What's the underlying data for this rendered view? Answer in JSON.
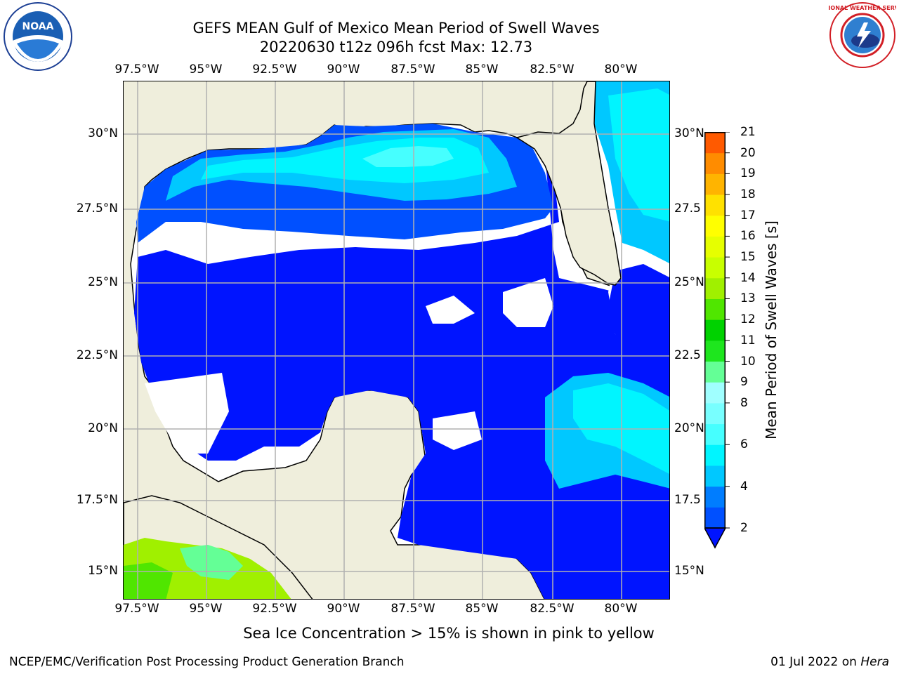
{
  "header": {
    "title_line1": "GEFS MEAN Gulf of Mexico Mean Period of Swell Waves",
    "title_line2": "20220630 t12z 096h fcst   Max: 12.73"
  },
  "map": {
    "lon_labels": [
      "97.5°W",
      "95°W",
      "92.5°W",
      "90°W",
      "87.5°W",
      "85°W",
      "82.5°W",
      "80°W"
    ],
    "lat_labels_left": [
      "30°N",
      "27.5°N",
      "25°N",
      "22.5°N",
      "20°N",
      "17.5°N",
      "15°N"
    ],
    "lat_labels_right": [
      "30°N",
      "27.5",
      "25°N",
      "22.5",
      "20°N",
      "17.5",
      "15°N"
    ],
    "land_color": "#efeedc",
    "grid_color": "#b0b0b0"
  },
  "colorbar": {
    "label": "Mean Period of Swell Waves [s]",
    "ticks": [
      "21",
      "20",
      "19",
      "18",
      "17",
      "16",
      "15",
      "14",
      "13",
      "12",
      "11",
      "10",
      "9",
      "8",
      "7",
      "6",
      "5",
      "4",
      "3",
      "2"
    ],
    "tick_labels_visible": [
      "21",
      "20",
      "19",
      "18",
      "17",
      "16",
      "15",
      "14",
      "13",
      "12",
      "11",
      "10",
      "9",
      "8",
      "6",
      "4",
      "2"
    ],
    "colors": [
      "#0014ff",
      "#0050ff",
      "#007dff",
      "#00c8ff",
      "#00f5ff",
      "#46ffff",
      "#78ffff",
      "#a0ffff",
      "#64ff96",
      "#1ee61e",
      "#00d200",
      "#50e600",
      "#a0f000",
      "#c8ff00",
      "#e6ff00",
      "#ffff00",
      "#ffe100",
      "#ffb400",
      "#ff8c00",
      "#ff5a00",
      "#ff2800",
      "#ff0000"
    ]
  },
  "notes": {
    "sea_ice": "Sea Ice Concentration > 15% is shown in pink to yellow"
  },
  "footer": {
    "left": "NCEP/EMC/Verification Post Processing Product Generation Branch",
    "right_date": "01 Jul 2022 on ",
    "right_host": "Hera"
  },
  "logos": {
    "noaa_text": "NOAA",
    "nws_text": "NATIONAL WEATHER SERVICE"
  }
}
